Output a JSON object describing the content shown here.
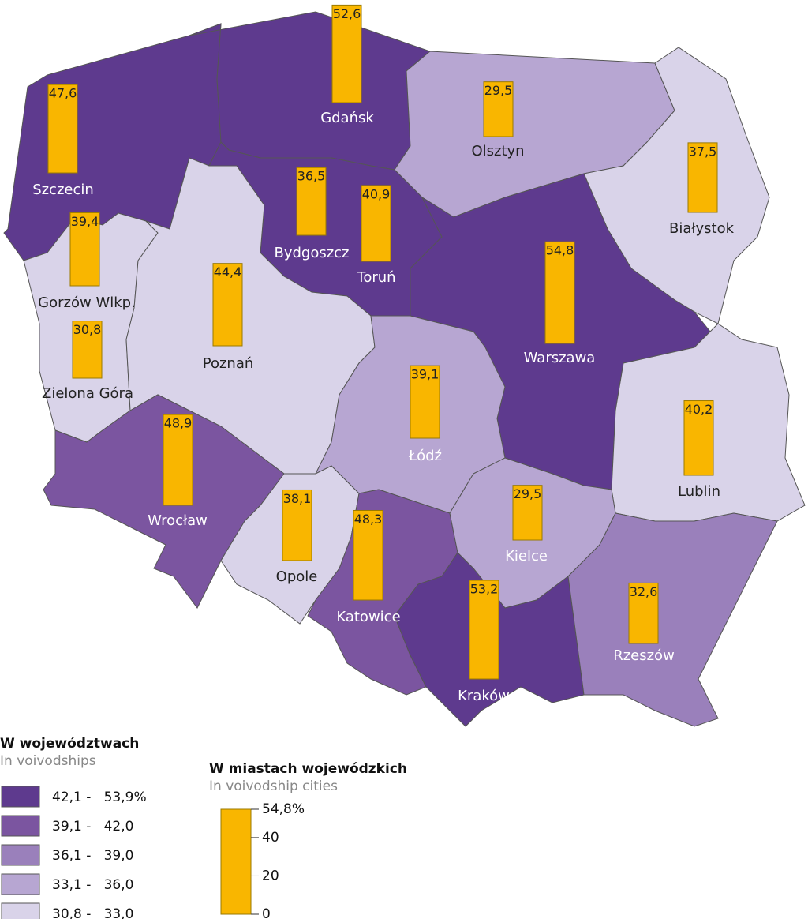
{
  "chart_data": {
    "type": "map-bars",
    "cities": [
      {
        "name": "Szczecin",
        "value": 47.6,
        "value_label": "47,6"
      },
      {
        "name": "Gdańsk",
        "value": 52.6,
        "value_label": "52,6"
      },
      {
        "name": "Olsztyn",
        "value": 29.5,
        "value_label": "29,5"
      },
      {
        "name": "Białystok",
        "value": 37.5,
        "value_label": "37,5"
      },
      {
        "name": "Bydgoszcz",
        "value": 36.5,
        "value_label": "36,5"
      },
      {
        "name": "Toruń",
        "value": 40.9,
        "value_label": "40,9"
      },
      {
        "name": "Gorzów Wlkp.",
        "value": 39.4,
        "value_label": "39,4"
      },
      {
        "name": "Poznań",
        "value": 44.4,
        "value_label": "44,4"
      },
      {
        "name": "Warszawa",
        "value": 54.8,
        "value_label": "54,8"
      },
      {
        "name": "Zielona Góra",
        "value": 30.8,
        "value_label": "30,8"
      },
      {
        "name": "Łódź",
        "value": 39.1,
        "value_label": "39,1"
      },
      {
        "name": "Lublin",
        "value": 40.2,
        "value_label": "40,2"
      },
      {
        "name": "Wrocław",
        "value": 48.9,
        "value_label": "48,9"
      },
      {
        "name": "Opole",
        "value": 38.1,
        "value_label": "38,1"
      },
      {
        "name": "Kielce",
        "value": 29.5,
        "value_label": "29,5"
      },
      {
        "name": "Katowice",
        "value": 48.3,
        "value_label": "48,3"
      },
      {
        "name": "Kraków",
        "value": 53.2,
        "value_label": "53,2"
      },
      {
        "name": "Rzeszów",
        "value": 32.6,
        "value_label": "32,6"
      }
    ],
    "bar_color": "#f9b600",
    "region_legend": {
      "title": "W województwach",
      "subtitle": "In voivodships",
      "classes": [
        {
          "label": "42,1 -   53,9%",
          "color": "#5e3a8e"
        },
        {
          "label": "39,1 -   42,0",
          "color": "#7b55a0"
        },
        {
          "label": "36,1 -   39,0",
          "color": "#9a80bb"
        },
        {
          "label": "33,1 -   36,0",
          "color": "#b7a6d2"
        },
        {
          "label": "30,8 -   33,0",
          "color": "#d9d3e9"
        }
      ]
    },
    "bar_legend": {
      "title": "W miastach wojewódzkich",
      "subtitle": "In voivodship cities",
      "ylim": [
        0,
        54.8
      ],
      "yticks": [
        0,
        20,
        40,
        {
          "value": 54.8,
          "label": "54,8%"
        }
      ]
    }
  }
}
